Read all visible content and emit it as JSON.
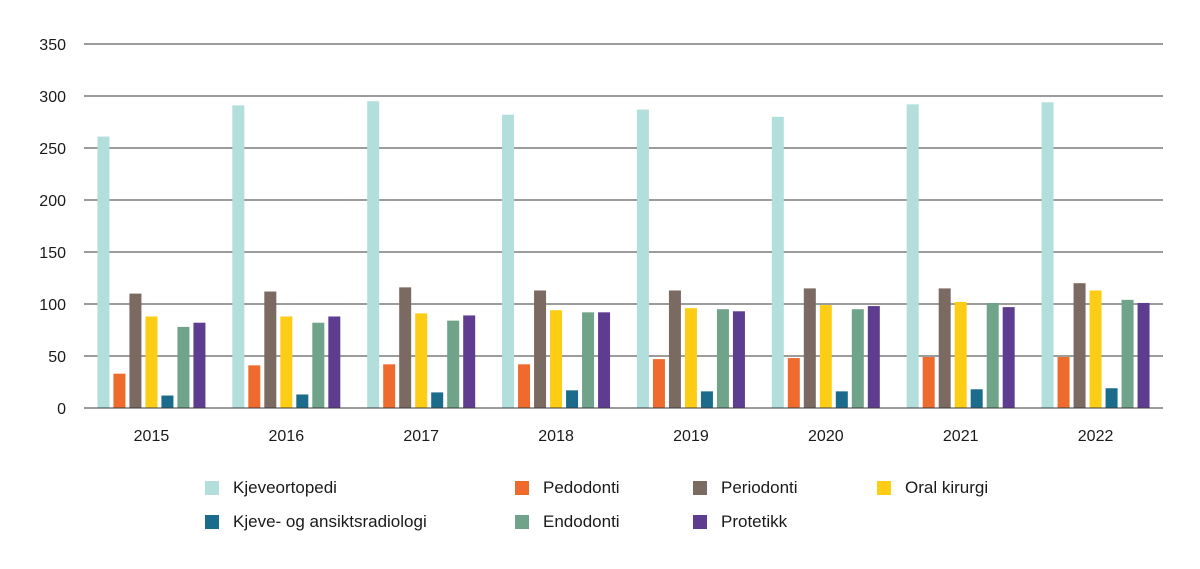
{
  "chart_data": {
    "type": "bar",
    "title": "",
    "xlabel": "",
    "ylabel": "",
    "ylim": [
      0,
      350
    ],
    "yticks": [
      0,
      50,
      100,
      150,
      200,
      250,
      300,
      350
    ],
    "grid": true,
    "legend_position": "bottom",
    "categories": [
      "2015",
      "2016",
      "2017",
      "2018",
      "2019",
      "2020",
      "2021",
      "2022"
    ],
    "series": [
      {
        "name": "Kjeveortopedi",
        "color": "#b2dfdb",
        "values": [
          261,
          291,
          295,
          282,
          287,
          280,
          292,
          294
        ]
      },
      {
        "name": "Pedodonti",
        "color": "#ee6a2d",
        "values": [
          33,
          41,
          42,
          42,
          47,
          48,
          49,
          49
        ]
      },
      {
        "name": "Periodonti",
        "color": "#7a6a62",
        "values": [
          110,
          112,
          116,
          113,
          113,
          115,
          115,
          120
        ]
      },
      {
        "name": "Oral kirurgi",
        "color": "#fdcd16",
        "values": [
          88,
          88,
          91,
          94,
          96,
          99,
          102,
          113
        ]
      },
      {
        "name": "Kjeve- og ansiktsradiologi",
        "color": "#1b6c8c",
        "values": [
          12,
          13,
          15,
          17,
          16,
          16,
          18,
          19
        ]
      },
      {
        "name": "Endodonti",
        "color": "#6fa38a",
        "values": [
          78,
          82,
          84,
          92,
          95,
          95,
          101,
          104
        ]
      },
      {
        "name": "Protetikk",
        "color": "#5e3d91",
        "values": [
          82,
          88,
          89,
          92,
          93,
          98,
          97,
          101
        ]
      }
    ]
  }
}
